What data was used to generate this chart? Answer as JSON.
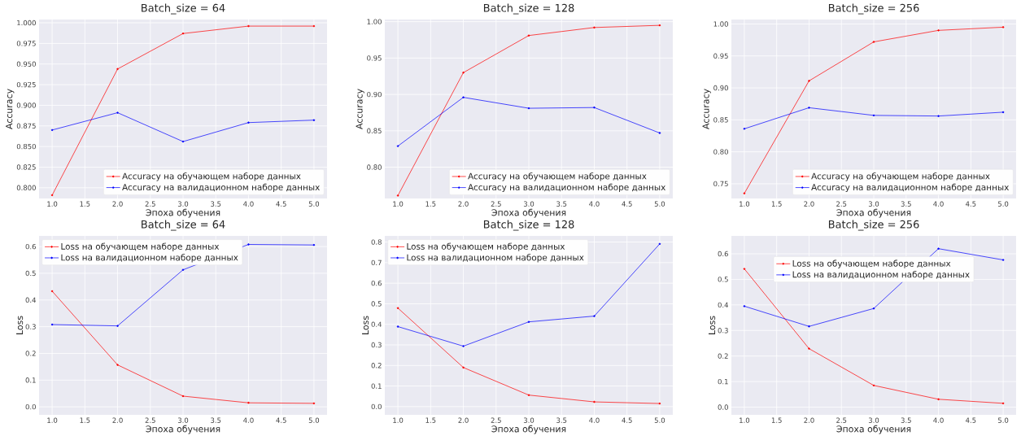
{
  "chart_data": [
    {
      "type": "line",
      "title": "Batch_size = 64",
      "xlabel": "Эпоха обучения",
      "ylabel": "Accuracy",
      "x": [
        1,
        2,
        3,
        4,
        5
      ],
      "xlim": [
        0.8,
        5.2
      ],
      "xticks": [
        {
          "value": 1,
          "label": "1.0"
        },
        {
          "value": 1.5,
          "label": "1.5"
        },
        {
          "value": 2,
          "label": "2.0"
        },
        {
          "value": 2.5,
          "label": "2.5"
        },
        {
          "value": 3,
          "label": "3.0"
        },
        {
          "value": 3.5,
          "label": "3.5"
        },
        {
          "value": 4,
          "label": "4.0"
        },
        {
          "value": 4.5,
          "label": "4.5"
        },
        {
          "value": 5,
          "label": "5.0"
        }
      ],
      "ylim": [
        0.787,
        1.004
      ],
      "yticks": [
        {
          "value": 0.8,
          "label": "0.800"
        },
        {
          "value": 0.825,
          "label": "0.825"
        },
        {
          "value": 0.85,
          "label": "0.850"
        },
        {
          "value": 0.875,
          "label": "0.875"
        },
        {
          "value": 0.9,
          "label": "0.900"
        },
        {
          "value": 0.925,
          "label": "0.925"
        },
        {
          "value": 0.95,
          "label": "0.950"
        },
        {
          "value": 0.975,
          "label": "0.975"
        },
        {
          "value": 1.0,
          "label": "1.000"
        }
      ],
      "grid": true,
      "legend": "bottom right",
      "marker": "circle",
      "line_style": "solid",
      "series": [
        {
          "name": "Accuracy на обучающем наборе данных",
          "color": "#ff0000",
          "values": [
            0.791,
            0.944,
            0.987,
            0.996,
            0.996
          ]
        },
        {
          "name": "Accuracy на валидационном наборе данных",
          "color": "#0000ff",
          "values": [
            0.87,
            0.891,
            0.856,
            0.879,
            0.882
          ]
        }
      ]
    },
    {
      "type": "line",
      "title": "Batch_size = 128",
      "xlabel": "Эпоха обучения",
      "ylabel": "Accuracy",
      "x": [
        1,
        2,
        3,
        4,
        5
      ],
      "xlim": [
        0.8,
        5.2
      ],
      "xticks": [
        {
          "value": 1,
          "label": "1.0"
        },
        {
          "value": 1.5,
          "label": "1.5"
        },
        {
          "value": 2,
          "label": "2.0"
        },
        {
          "value": 2.5,
          "label": "2.5"
        },
        {
          "value": 3,
          "label": "3.0"
        },
        {
          "value": 3.5,
          "label": "3.5"
        },
        {
          "value": 4,
          "label": "4.0"
        },
        {
          "value": 4.5,
          "label": "4.5"
        },
        {
          "value": 5,
          "label": "5.0"
        }
      ],
      "ylim": [
        0.757,
        1.003
      ],
      "yticks": [
        {
          "value": 0.8,
          "label": "0.80"
        },
        {
          "value": 0.85,
          "label": "0.85"
        },
        {
          "value": 0.9,
          "label": "0.90"
        },
        {
          "value": 0.95,
          "label": "0.95"
        },
        {
          "value": 1.0,
          "label": "1.00"
        }
      ],
      "grid": true,
      "legend": "bottom right",
      "marker": "circle",
      "line_style": "solid",
      "series": [
        {
          "name": "Accuracy на обучающем наборе данных",
          "color": "#ff0000",
          "values": [
            0.761,
            0.93,
            0.981,
            0.992,
            0.995
          ]
        },
        {
          "name": "Accuracy на валидационном наборе данных",
          "color": "#0000ff",
          "values": [
            0.829,
            0.896,
            0.881,
            0.882,
            0.847
          ]
        }
      ]
    },
    {
      "type": "line",
      "title": "Batch_size = 256",
      "xlabel": "Эпоха обучения",
      "ylabel": "Accuracy",
      "x": [
        1,
        2,
        3,
        4,
        5
      ],
      "xlim": [
        0.8,
        5.2
      ],
      "xticks": [
        {
          "value": 1,
          "label": "1.0"
        },
        {
          "value": 1.5,
          "label": "1.5"
        },
        {
          "value": 2,
          "label": "2.0"
        },
        {
          "value": 2.5,
          "label": "2.5"
        },
        {
          "value": 3,
          "label": "3.0"
        },
        {
          "value": 3.5,
          "label": "3.5"
        },
        {
          "value": 4,
          "label": "4.0"
        },
        {
          "value": 4.5,
          "label": "4.5"
        },
        {
          "value": 5,
          "label": "5.0"
        }
      ],
      "ylim": [
        0.727,
        1.007
      ],
      "yticks": [
        {
          "value": 0.75,
          "label": "0.75"
        },
        {
          "value": 0.8,
          "label": "0.80"
        },
        {
          "value": 0.85,
          "label": "0.85"
        },
        {
          "value": 0.9,
          "label": "0.90"
        },
        {
          "value": 0.95,
          "label": "0.95"
        },
        {
          "value": 1.0,
          "label": "1.00"
        }
      ],
      "grid": true,
      "legend": "bottom right",
      "marker": "circle",
      "line_style": "solid",
      "series": [
        {
          "name": "Accuracy на обучающем наборе данных",
          "color": "#ff0000",
          "values": [
            0.735,
            0.911,
            0.972,
            0.99,
            0.995
          ]
        },
        {
          "name": "Accuracy на валидационном наборе данных",
          "color": "#0000ff",
          "values": [
            0.836,
            0.869,
            0.857,
            0.856,
            0.862
          ]
        }
      ]
    },
    {
      "type": "line",
      "title": "Batch_size = 64",
      "xlabel": "Эпоха обучения",
      "ylabel": "Loss",
      "x": [
        1,
        2,
        3,
        4,
        5
      ],
      "xlim": [
        0.8,
        5.2
      ],
      "xticks": [
        {
          "value": 1,
          "label": "1.0"
        },
        {
          "value": 1.5,
          "label": "1.5"
        },
        {
          "value": 2,
          "label": "2.0"
        },
        {
          "value": 2.5,
          "label": "2.5"
        },
        {
          "value": 3,
          "label": "3.0"
        },
        {
          "value": 3.5,
          "label": "3.5"
        },
        {
          "value": 4,
          "label": "4.0"
        },
        {
          "value": 4.5,
          "label": "4.5"
        },
        {
          "value": 5,
          "label": "5.0"
        }
      ],
      "ylim": [
        -0.03,
        0.64
      ],
      "yticks": [
        {
          "value": 0,
          "label": "0.0"
        },
        {
          "value": 0.1,
          "label": "0.1"
        },
        {
          "value": 0.2,
          "label": "0.2"
        },
        {
          "value": 0.3,
          "label": "0.3"
        },
        {
          "value": 0.4,
          "label": "0.4"
        },
        {
          "value": 0.5,
          "label": "0.5"
        },
        {
          "value": 0.6,
          "label": "0.6"
        }
      ],
      "grid": true,
      "legend": "top left",
      "marker": "circle",
      "line_style": "solid",
      "series": [
        {
          "name": "Loss на обучающем наборе данных",
          "color": "#ff0000",
          "values": [
            0.433,
            0.157,
            0.04,
            0.015,
            0.013
          ]
        },
        {
          "name": "Loss на валидационном наборе данных",
          "color": "#0000ff",
          "values": [
            0.308,
            0.303,
            0.513,
            0.608,
            0.606
          ]
        }
      ]
    },
    {
      "type": "line",
      "title": "Batch_size = 128",
      "xlabel": "Эпоха обучения",
      "ylabel": "Loss",
      "x": [
        1,
        2,
        3,
        4,
        5
      ],
      "xlim": [
        0.8,
        5.2
      ],
      "xticks": [
        {
          "value": 1,
          "label": "1.0"
        },
        {
          "value": 1.5,
          "label": "1.5"
        },
        {
          "value": 2,
          "label": "2.0"
        },
        {
          "value": 2.5,
          "label": "2.5"
        },
        {
          "value": 3,
          "label": "3.0"
        },
        {
          "value": 3.5,
          "label": "3.5"
        },
        {
          "value": 4,
          "label": "4.0"
        },
        {
          "value": 4.5,
          "label": "4.5"
        },
        {
          "value": 5,
          "label": "5.0"
        }
      ],
      "ylim": [
        -0.04,
        0.83
      ],
      "yticks": [
        {
          "value": 0,
          "label": "0.0"
        },
        {
          "value": 0.1,
          "label": "0.1"
        },
        {
          "value": 0.2,
          "label": "0.2"
        },
        {
          "value": 0.3,
          "label": "0.3"
        },
        {
          "value": 0.4,
          "label": "0.4"
        },
        {
          "value": 0.5,
          "label": "0.5"
        },
        {
          "value": 0.6,
          "label": "0.6"
        },
        {
          "value": 0.7,
          "label": "0.7"
        },
        {
          "value": 0.8,
          "label": "0.8"
        }
      ],
      "grid": true,
      "legend": "top left",
      "marker": "circle",
      "line_style": "solid",
      "series": [
        {
          "name": "Loss на обучающем наборе данных",
          "color": "#ff0000",
          "values": [
            0.479,
            0.19,
            0.056,
            0.023,
            0.015
          ]
        },
        {
          "name": "Loss на валидационном наборе данных",
          "color": "#0000ff",
          "values": [
            0.389,
            0.294,
            0.412,
            0.44,
            0.791
          ]
        }
      ]
    },
    {
      "type": "line",
      "title": "Batch_size = 256",
      "xlabel": "Эпоха обучения",
      "ylabel": "Loss",
      "x": [
        1,
        2,
        3,
        4,
        5
      ],
      "xlim": [
        0.8,
        5.2
      ],
      "xticks": [
        {
          "value": 1,
          "label": "1.0"
        },
        {
          "value": 1.5,
          "label": "1.5"
        },
        {
          "value": 2,
          "label": "2.0"
        },
        {
          "value": 2.5,
          "label": "2.5"
        },
        {
          "value": 3,
          "label": "3.0"
        },
        {
          "value": 3.5,
          "label": "3.5"
        },
        {
          "value": 4,
          "label": "4.0"
        },
        {
          "value": 4.5,
          "label": "4.5"
        },
        {
          "value": 5,
          "label": "5.0"
        }
      ],
      "ylim": [
        -0.03,
        0.67
      ],
      "yticks": [
        {
          "value": 0,
          "label": "0.0"
        },
        {
          "value": 0.1,
          "label": "0.1"
        },
        {
          "value": 0.2,
          "label": "0.2"
        },
        {
          "value": 0.3,
          "label": "0.3"
        },
        {
          "value": 0.4,
          "label": "0.4"
        },
        {
          "value": 0.5,
          "label": "0.5"
        },
        {
          "value": 0.6,
          "label": "0.6"
        }
      ],
      "grid": true,
      "legend": "top",
      "marker": "circle",
      "line_style": "solid",
      "series": [
        {
          "name": "Loss на обучающем наборе данных",
          "color": "#ff0000",
          "values": [
            0.541,
            0.229,
            0.085,
            0.031,
            0.015
          ]
        },
        {
          "name": "Loss на валидационном наборе данных",
          "color": "#0000ff",
          "values": [
            0.395,
            0.316,
            0.386,
            0.62,
            0.576
          ]
        }
      ]
    }
  ]
}
